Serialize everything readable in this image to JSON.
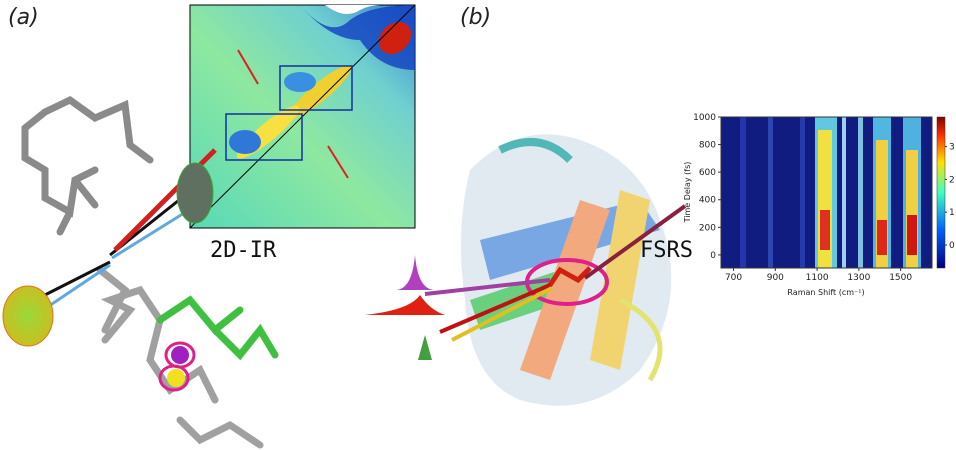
{
  "panel_a": {
    "label": "(a)",
    "technique": "2D-IR"
  },
  "panel_b": {
    "label": "(b)",
    "technique": "FSRS",
    "heatmap": {
      "xlabel": "Raman Shift (cm⁻¹)",
      "ylabel": "Time Delay (fs)",
      "xlim": [
        640,
        1650
      ],
      "xticks": [
        700,
        900,
        1100,
        1300,
        1500
      ],
      "ylim": [
        -95,
        1000
      ],
      "yticks": [
        0,
        200,
        400,
        600,
        800,
        1000
      ],
      "clim": [
        -0.7,
        3.9
      ],
      "cticks": [
        0,
        1,
        2,
        3
      ]
    }
  }
}
